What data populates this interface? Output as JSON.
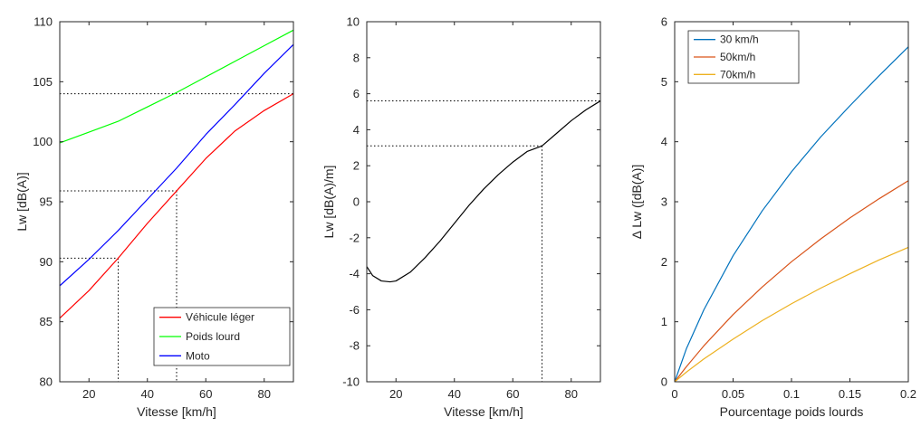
{
  "chart_data": [
    {
      "type": "line",
      "xlabel": "Vitesse [km/h]",
      "ylabel": "Lw [dB(A)]",
      "xlim": [
        10,
        90
      ],
      "ylim": [
        80,
        110
      ],
      "xticks": [
        20,
        40,
        60,
        80
      ],
      "yticks": [
        80,
        85,
        90,
        95,
        100,
        105,
        110
      ],
      "grid": false,
      "legend_position": "bottom-right",
      "series": [
        {
          "name": "Véhicule léger",
          "color": "#ff0000",
          "x": [
            10,
            20,
            30,
            40,
            50,
            60,
            70,
            80,
            90
          ],
          "y": [
            85.3,
            87.6,
            90.3,
            93.2,
            95.9,
            98.6,
            100.9,
            102.6,
            104.0
          ]
        },
        {
          "name": "Poids lourd",
          "color": "#00ff00",
          "x": [
            10,
            20,
            30,
            40,
            50,
            60,
            70,
            80,
            90
          ],
          "y": [
            99.9,
            100.8,
            101.7,
            102.9,
            104.1,
            105.4,
            106.7,
            108.0,
            109.3
          ]
        },
        {
          "name": "Moto",
          "color": "#0000ff",
          "x": [
            10,
            20,
            30,
            40,
            50,
            60,
            70,
            80,
            90
          ],
          "y": [
            88.0,
            90.2,
            92.6,
            95.2,
            97.8,
            100.6,
            103.1,
            105.7,
            108.1
          ]
        }
      ],
      "reference_lines": [
        {
          "x": 30,
          "y": 90.3
        },
        {
          "x": 50,
          "y": 95.9
        },
        {
          "x": 90,
          "y": 104.0
        }
      ]
    },
    {
      "type": "line",
      "xlabel": "Vitesse [km/h]",
      "ylabel": "Lw [dB(A)/m]",
      "xlim": [
        10,
        90
      ],
      "ylim": [
        -10,
        10
      ],
      "xticks": [
        20,
        40,
        60,
        80
      ],
      "yticks": [
        -10,
        -8,
        -6,
        -4,
        -2,
        0,
        2,
        4,
        6,
        8,
        10
      ],
      "grid": false,
      "series": [
        {
          "color": "#000000",
          "x": [
            10,
            12,
            15,
            18,
            20,
            25,
            30,
            35,
            40,
            45,
            50,
            55,
            60,
            65,
            70,
            75,
            80,
            85,
            90
          ],
          "y": [
            -3.6,
            -4.1,
            -4.4,
            -4.45,
            -4.4,
            -3.9,
            -3.1,
            -2.2,
            -1.2,
            -0.2,
            0.7,
            1.5,
            2.2,
            2.8,
            3.1,
            3.8,
            4.5,
            5.1,
            5.6
          ]
        }
      ],
      "reference_lines": [
        {
          "x": 70,
          "y": 3.1
        },
        {
          "x": 90,
          "y": 5.6
        }
      ]
    },
    {
      "type": "line",
      "xlabel": "Pourcentage poids lourds",
      "ylabel": "Δ Lw ([dB(A)]",
      "xlim": [
        0,
        0.2
      ],
      "ylim": [
        0,
        6
      ],
      "xticks": [
        0,
        0.05,
        0.1,
        0.15,
        0.2
      ],
      "yticks": [
        0,
        1,
        2,
        3,
        4,
        5,
        6
      ],
      "grid": false,
      "legend_position": "top-left",
      "series": [
        {
          "name": "30 km/h",
          "color": "#0072bd",
          "x": [
            0,
            0.01,
            0.025,
            0.05,
            0.075,
            0.1,
            0.125,
            0.15,
            0.175,
            0.2
          ],
          "y": [
            0,
            0.55,
            1.2,
            2.1,
            2.85,
            3.5,
            4.08,
            4.6,
            5.1,
            5.58
          ]
        },
        {
          "name": "50km/h",
          "color": "#d95319",
          "x": [
            0,
            0.01,
            0.025,
            0.05,
            0.075,
            0.1,
            0.125,
            0.15,
            0.175,
            0.2
          ],
          "y": [
            0,
            0.25,
            0.6,
            1.12,
            1.58,
            2.0,
            2.38,
            2.73,
            3.05,
            3.35
          ]
        },
        {
          "name": "70km/h",
          "color": "#edb120",
          "x": [
            0,
            0.01,
            0.025,
            0.05,
            0.075,
            0.1,
            0.125,
            0.15,
            0.175,
            0.2
          ],
          "y": [
            0,
            0.16,
            0.38,
            0.71,
            1.02,
            1.3,
            1.56,
            1.8,
            2.03,
            2.24
          ]
        }
      ]
    }
  ]
}
